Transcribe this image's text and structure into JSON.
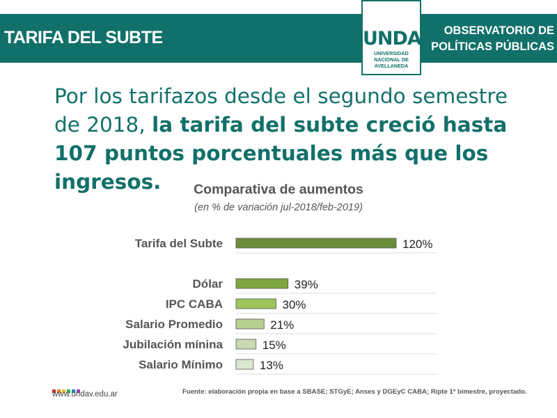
{
  "header": {
    "title": "TARIFA DEL SUBTE",
    "logo_word": "UNDAV",
    "logo_sub": "UNIVERSIDAD\nNACIONAL DE\nAVELLANEDA",
    "right": "OBSERVATORIO DE\nPOLÍTICAS PÚBLICAS"
  },
  "headline": {
    "normal": "Por los tarifazos desde el segundo semestre de 2018, ",
    "bold": "la tarifa del subte creció hasta 107 puntos porcentuales más que los ingresos."
  },
  "chart_data": {
    "type": "bar",
    "orientation": "horizontal",
    "title": "Comparativa de aumentos",
    "subtitle": "(en % de variación jul-2018/feb-2019)",
    "categories": [
      "Tarifa del Subte",
      "Dólar",
      "IPC CABA",
      "Salario Promedio",
      "Jubilación mínina",
      "Salario Mínimo"
    ],
    "values": [
      120,
      39,
      30,
      21,
      15,
      13
    ],
    "data_labels": [
      "120%",
      "39%",
      "30%",
      "21%",
      "15%",
      "13%"
    ],
    "colors": [
      "#6b8e3a",
      "#7fa63f",
      "#9cc55b",
      "#b4cf8f",
      "#c9d9b2",
      "#dce7cf"
    ],
    "xlim": [
      0,
      120
    ],
    "grid": false,
    "legend": "none"
  },
  "footer": {
    "url": "www.undav.edu.ar",
    "source": "Fuente: elaboración propia en base a SBASE; STGyE; Anses y DGEyC CABA; Ripte 1º bimestre, proyectado.",
    "dot_colors": [
      "#c0392b",
      "#e67e22",
      "#f1c40f",
      "#27ae60",
      "#2980b9",
      "#8e44ad"
    ]
  }
}
